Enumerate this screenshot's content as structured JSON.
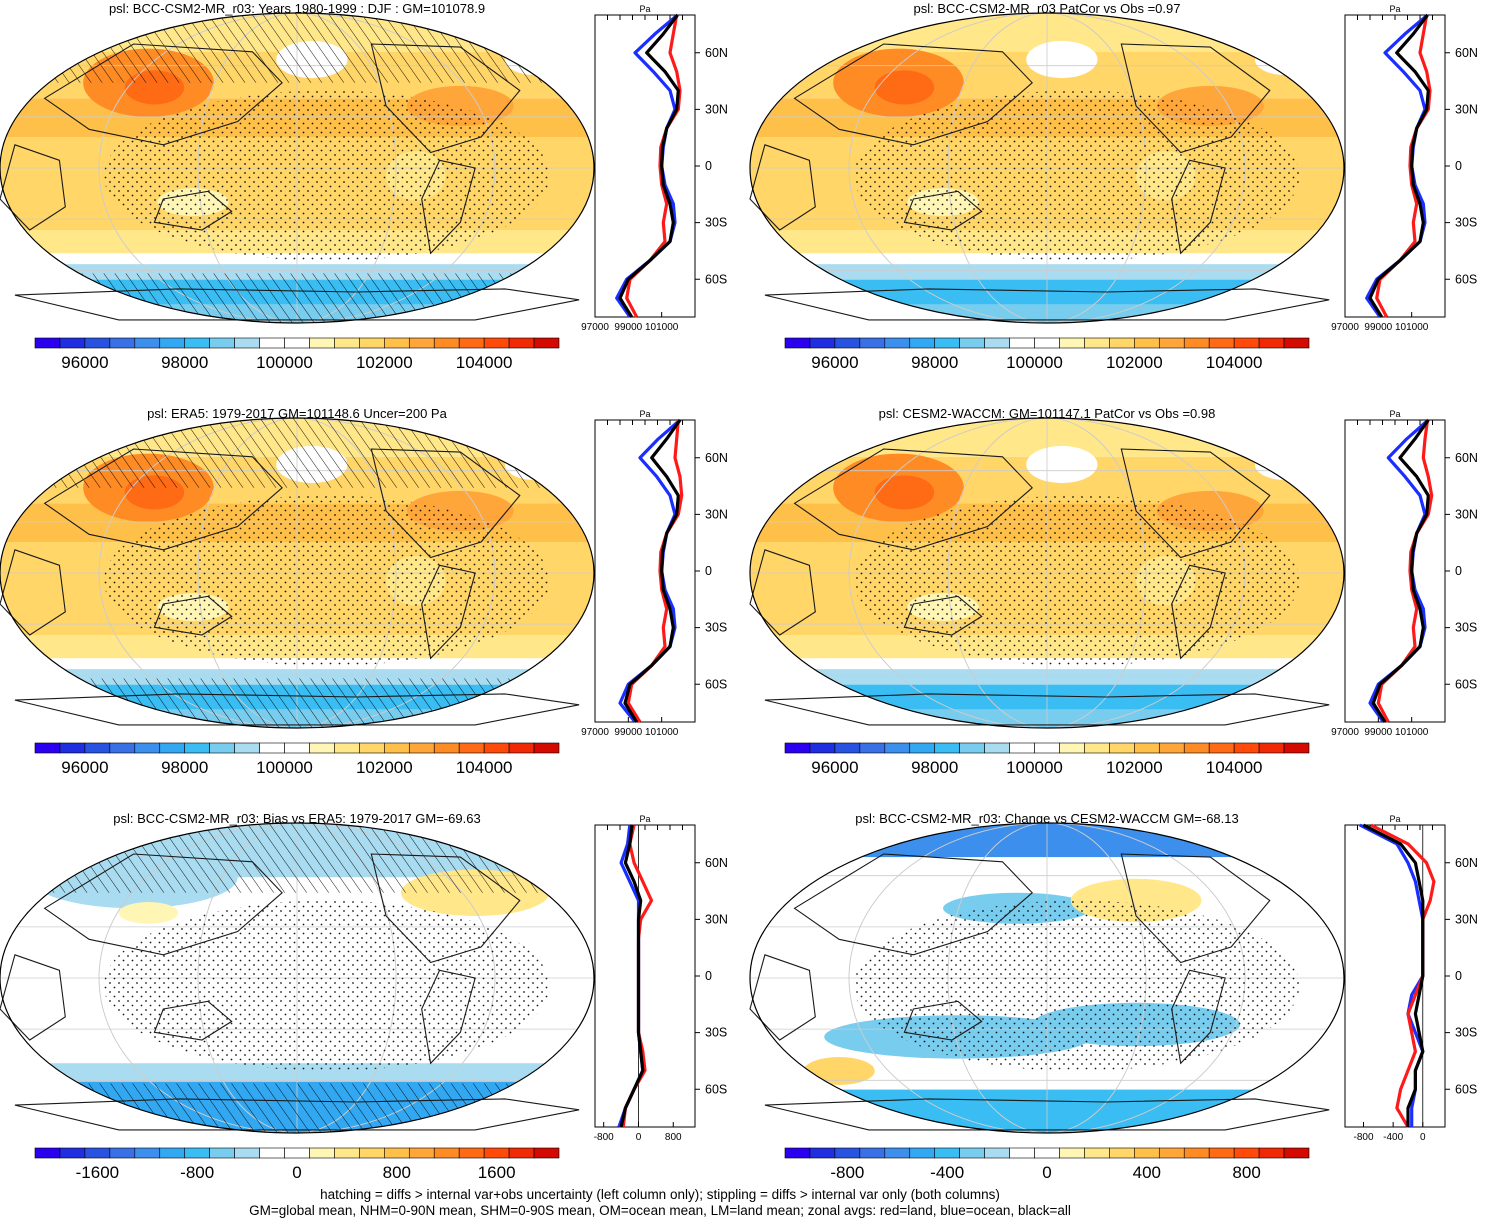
{
  "colors": {
    "palette": [
      "#2b00f0",
      "#1f2ee0",
      "#2852e0",
      "#3a70e6",
      "#3d8fee",
      "#33a8f2",
      "#39bdf2",
      "#78cdef",
      "#a9dcf0",
      "#ffffff",
      "#ffffff",
      "#fff5b5",
      "#ffe78a",
      "#ffd667",
      "#ffc04a",
      "#ffa63a",
      "#ff8b25",
      "#ff6a14",
      "#ff4a0a",
      "#f02a05",
      "#d40a00"
    ],
    "land_line": "#1a1a1a",
    "zonal_land": "#ff1a1a",
    "zonal_ocean": "#1a2eff",
    "zonal_all": "#000000",
    "grid": "#cccccc"
  },
  "lat_tick_labels": [
    "60N",
    "30N",
    "0",
    "30S",
    "60S"
  ],
  "zonal_units": "Pa",
  "panels": [
    {
      "id": "p1",
      "title": "psl: BCC-CSM2-MR_r03: Years 1980-1999 : DJF : GM=101078.9",
      "kind": "abs",
      "hatch": true,
      "colorbar_labels": [
        "96000",
        "98000",
        "100000",
        "102000",
        "104000"
      ],
      "zonal_ticks": [
        "97000",
        "99000",
        "101000"
      ]
    },
    {
      "id": "p2",
      "title": "psl: BCC-CSM2-MR_r03 PatCor vs Obs =0.97",
      "kind": "abs",
      "hatch": false,
      "colorbar_labels": [
        "96000",
        "98000",
        "100000",
        "102000",
        "104000"
      ],
      "zonal_ticks": [
        "97000",
        "99000",
        "101000"
      ]
    },
    {
      "id": "p3",
      "title": "psl: ERA5: 1979-2017 GM=101148.6 Uncer=200 Pa",
      "kind": "abs",
      "hatch": true,
      "colorbar_labels": [
        "96000",
        "98000",
        "100000",
        "102000",
        "104000"
      ],
      "zonal_ticks": [
        "97000",
        "99000",
        "101000"
      ]
    },
    {
      "id": "p4",
      "title": "psl: CESM2-WACCM: GM=101147.1 PatCor vs Obs =0.98",
      "kind": "abs",
      "hatch": false,
      "colorbar_labels": [
        "96000",
        "98000",
        "100000",
        "102000",
        "104000"
      ],
      "zonal_ticks": [
        "97000",
        "99000",
        "101000"
      ]
    },
    {
      "id": "p5",
      "title": "psl: BCC-CSM2-MR_r03: Bias vs ERA5: 1979-2017 GM=-69.63",
      "kind": "bias",
      "hatch": true,
      "colorbar_labels": [
        "-1600",
        "-800",
        "0",
        "800",
        "1600"
      ],
      "zonal_ticks": [
        "-800",
        "0",
        "800"
      ]
    },
    {
      "id": "p6",
      "title": "psl: BCC-CSM2-MR_r03: Change vs CESM2-WACCM GM=-68.13",
      "kind": "change",
      "hatch": false,
      "colorbar_labels": [
        "-800",
        "-400",
        "0",
        "400",
        "800"
      ],
      "zonal_ticks": [
        "-800",
        "-400",
        "0"
      ]
    }
  ],
  "footnote": {
    "line1": "hatching = diffs > internal var+obs uncertainty (left column only); stippling = diffs > internal var only (both columns)",
    "line2": "GM=global mean, NHM=0-90N mean, SHM=0-90S mean, OM=ocean mean, LM=land mean; zonal avgs: red=land, blue=ocean, black=all"
  },
  "chart_data": [
    {
      "type": "heatmap",
      "title": "psl: BCC-CSM2-MR_r03: Years 1980-1999 : DJF : GM=101078.9",
      "colorbar_ticks": [
        96000,
        98000,
        100000,
        102000,
        104000
      ],
      "colorbar_range": [
        95000,
        105500
      ],
      "zonal_xlim": [
        97000,
        103000
      ],
      "zonal_x_ticks": [
        97000,
        99000,
        101000
      ],
      "y_ticks": [
        "60N",
        "30N",
        "0",
        "30S",
        "60S"
      ],
      "zonal_mean": {
        "lat": [
          80,
          70,
          60,
          50,
          40,
          30,
          20,
          10,
          0,
          -10,
          -20,
          -30,
          -40,
          -50,
          -60,
          -70,
          -80
        ],
        "all": [
          101950,
          101100,
          100100,
          101200,
          102000,
          101900,
          101300,
          101050,
          101000,
          101100,
          101500,
          101700,
          101500,
          100300,
          99000,
          98500,
          99200
        ],
        "land": [
          101900,
          101700,
          101500,
          101900,
          102100,
          102000,
          101300,
          100950,
          100900,
          101000,
          101300,
          101100,
          101200,
          100300,
          99100,
          98900,
          99500
        ],
        "ocean": [
          101950,
          100600,
          99400,
          100500,
          101500,
          101800,
          101300,
          101100,
          101000,
          101200,
          101700,
          101800,
          101500,
          100300,
          98900,
          98300,
          99100
        ]
      }
    },
    {
      "type": "heatmap",
      "title": "psl: BCC-CSM2-MR_r03 PatCor vs Obs =0.97",
      "colorbar_ticks": [
        96000,
        98000,
        100000,
        102000,
        104000
      ],
      "colorbar_range": [
        95000,
        105500
      ],
      "zonal_xlim": [
        97000,
        103000
      ],
      "zonal_x_ticks": [
        97000,
        99000,
        101000
      ],
      "y_ticks": [
        "60N",
        "30N",
        "0",
        "30S",
        "60S"
      ],
      "zonal_mean": {
        "lat": [
          80,
          70,
          60,
          50,
          40,
          30,
          20,
          10,
          0,
          -10,
          -20,
          -30,
          -40,
          -50,
          -60,
          -70,
          -80
        ],
        "all": [
          101950,
          101100,
          100100,
          101200,
          102000,
          101900,
          101300,
          101050,
          101000,
          101100,
          101500,
          101700,
          101500,
          100300,
          99000,
          98500,
          99200
        ],
        "land": [
          101900,
          101700,
          101500,
          101900,
          102100,
          102000,
          101300,
          100950,
          100900,
          101000,
          101300,
          101100,
          101200,
          100300,
          99100,
          98900,
          99500
        ],
        "ocean": [
          101950,
          100600,
          99400,
          100500,
          101500,
          101800,
          101300,
          101100,
          101000,
          101200,
          101700,
          101800,
          101500,
          100300,
          98900,
          98300,
          99100
        ]
      }
    },
    {
      "type": "heatmap",
      "title": "psl: ERA5: 1979-2017 GM=101148.6 Uncer=200 Pa",
      "colorbar_ticks": [
        96000,
        98000,
        100000,
        102000,
        104000
      ],
      "colorbar_range": [
        95000,
        105500
      ],
      "zonal_xlim": [
        97000,
        103000
      ],
      "zonal_x_ticks": [
        97000,
        99000,
        101000
      ],
      "y_ticks": [
        "60N",
        "30N",
        "0",
        "30S",
        "60S"
      ],
      "zonal_mean": {
        "lat": [
          80,
          70,
          60,
          50,
          40,
          30,
          20,
          10,
          0,
          -10,
          -20,
          -30,
          -40,
          -50,
          -60,
          -70,
          -80
        ],
        "all": [
          102100,
          101300,
          100400,
          101300,
          102000,
          101900,
          101300,
          101050,
          101000,
          101100,
          101500,
          101700,
          101500,
          100400,
          99100,
          98800,
          99500
        ],
        "land": [
          102000,
          101900,
          101800,
          102100,
          102200,
          102000,
          101300,
          100950,
          100900,
          101000,
          101300,
          101100,
          101200,
          100400,
          99200,
          99000,
          99700
        ],
        "ocean": [
          102100,
          100800,
          99700,
          100700,
          101500,
          101800,
          101300,
          101100,
          101000,
          101200,
          101700,
          101800,
          101500,
          100400,
          99000,
          98500,
          99400
        ]
      }
    },
    {
      "type": "heatmap",
      "title": "psl: CESM2-WACCM: GM=101147.1 PatCor vs Obs =0.98",
      "colorbar_ticks": [
        96000,
        98000,
        100000,
        102000,
        104000
      ],
      "colorbar_range": [
        95000,
        105500
      ],
      "zonal_xlim": [
        97000,
        103000
      ],
      "zonal_x_ticks": [
        97000,
        99000,
        101000
      ],
      "y_ticks": [
        "60N",
        "30N",
        "0",
        "30S",
        "60S"
      ],
      "zonal_mean": {
        "lat": [
          80,
          70,
          60,
          50,
          40,
          30,
          20,
          10,
          0,
          -10,
          -20,
          -30,
          -40,
          -50,
          -60,
          -70,
          -80
        ],
        "all": [
          102000,
          101200,
          100300,
          101300,
          102000,
          101900,
          101300,
          101050,
          101000,
          101100,
          101500,
          101700,
          101500,
          100400,
          99100,
          98700,
          99400
        ],
        "land": [
          101950,
          101800,
          101700,
          102000,
          102200,
          102000,
          101300,
          100950,
          100900,
          101000,
          101300,
          101100,
          101200,
          100400,
          99200,
          99000,
          99600
        ],
        "ocean": [
          102000,
          100700,
          99600,
          100600,
          101500,
          101800,
          101300,
          101100,
          101000,
          101200,
          101700,
          101800,
          101500,
          100400,
          99000,
          98500,
          99300
        ]
      }
    },
    {
      "type": "heatmap",
      "title": "psl: BCC-CSM2-MR_r03: Bias vs ERA5: 1979-2017 GM=-69.63",
      "colorbar_ticks": [
        -1600,
        -800,
        0,
        800,
        1600
      ],
      "colorbar_range": [
        -2100,
        2100
      ],
      "zonal_xlim": [
        -1000,
        1300
      ],
      "zonal_x_ticks": [
        -800,
        0,
        800
      ],
      "y_ticks": [
        "60N",
        "30N",
        "0",
        "30S",
        "60S"
      ],
      "zonal_mean": {
        "lat": [
          80,
          70,
          60,
          50,
          40,
          30,
          20,
          10,
          0,
          -10,
          -20,
          -30,
          -40,
          -50,
          -60,
          -70,
          -80
        ],
        "all": [
          -150,
          -200,
          -300,
          -100,
          50,
          0,
          0,
          0,
          0,
          0,
          0,
          0,
          50,
          100,
          -100,
          -300,
          -400
        ],
        "land": [
          -100,
          -200,
          -100,
          100,
          300,
          50,
          0,
          0,
          0,
          0,
          0,
          0,
          100,
          150,
          -100,
          -300,
          -350
        ],
        "ocean": [
          -200,
          -250,
          -400,
          -200,
          0,
          0,
          0,
          0,
          0,
          0,
          0,
          0,
          50,
          100,
          -100,
          -300,
          -450
        ]
      }
    },
    {
      "type": "heatmap",
      "title": "psl: BCC-CSM2-MR_r03: Change vs CESM2-WACCM GM=-68.13",
      "colorbar_ticks": [
        -800,
        -400,
        0,
        400,
        800
      ],
      "colorbar_range": [
        -1050,
        1050
      ],
      "zonal_xlim": [
        -1050,
        300
      ],
      "zonal_x_ticks": [
        -800,
        -400,
        0
      ],
      "y_ticks": [
        "60N",
        "30N",
        "0",
        "30S",
        "60S"
      ],
      "zonal_mean": {
        "lat": [
          80,
          70,
          60,
          50,
          40,
          30,
          20,
          10,
          0,
          -10,
          -20,
          -30,
          -40,
          -50,
          -60,
          -70,
          -80
        ],
        "all": [
          -800,
          -300,
          -100,
          -50,
          0,
          0,
          0,
          0,
          0,
          -50,
          -100,
          -50,
          0,
          -100,
          -100,
          -200,
          -200
        ],
        "land": [
          -700,
          -200,
          50,
          150,
          100,
          0,
          0,
          0,
          0,
          -100,
          -200,
          -150,
          -100,
          -200,
          -300,
          -350,
          -200
        ],
        "ocean": [
          -850,
          -350,
          -200,
          -100,
          -50,
          0,
          0,
          0,
          0,
          -150,
          -200,
          -100,
          0,
          -100,
          -100,
          -150,
          -150
        ]
      }
    }
  ]
}
